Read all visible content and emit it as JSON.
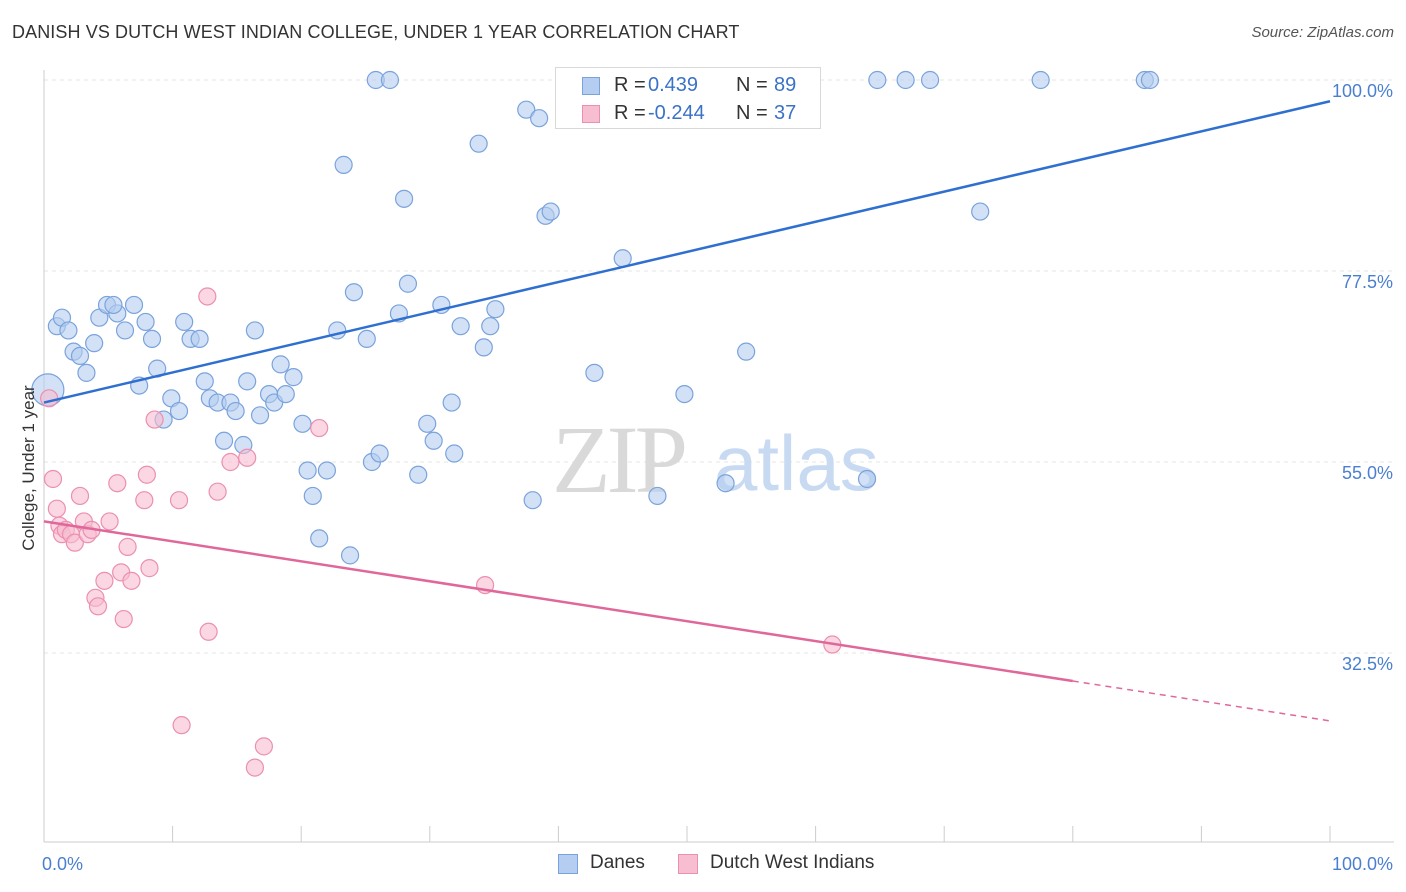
{
  "title": "DANISH VS DUTCH WEST INDIAN COLLEGE, UNDER 1 YEAR CORRELATION CHART",
  "source": "Source: ZipAtlas.com",
  "watermark": {
    "zip": "ZIP",
    "atlas": "atlas"
  },
  "legend_top": {
    "r_label": "R =",
    "n_label": "N =",
    "rows": [
      {
        "r": "0.439",
        "n": "89"
      },
      {
        "r": "-0.244",
        "n": "37"
      }
    ]
  },
  "legend_bottom": [
    "Danes",
    "Dutch West Indians"
  ],
  "colors": {
    "danes_fill": "#b4cdf0",
    "danes_stroke": "#7aa3dc",
    "danes_line": "#2f6fd0",
    "dwi_fill": "#f7bdd0",
    "dwi_stroke": "#ec8fb0",
    "dwi_line": "#e0679a",
    "tick_text": "#4a7fd0",
    "grid": "#e6e6e6"
  },
  "chart_data": {
    "type": "scatter",
    "title": "DANISH VS DUTCH WEST INDIAN COLLEGE, UNDER 1 YEAR CORRELATION CHART",
    "xlabel": "",
    "ylabel": "College, Under 1 year",
    "xlim": [
      0,
      100
    ],
    "ylim": [
      15,
      102
    ],
    "x_tick_labels": [
      "0.0%",
      "100.0%"
    ],
    "y_ticks": [
      {
        "value": 32.5,
        "label": "32.5%"
      },
      {
        "value": 55.0,
        "label": "55.0%"
      },
      {
        "value": 77.5,
        "label": "77.5%"
      },
      {
        "value": 100.0,
        "label": "100.0%"
      }
    ],
    "grid": true,
    "legend_position": "top-center",
    "series": [
      {
        "name": "Danes",
        "R": 0.439,
        "N": 89,
        "trend": {
          "x": [
            0,
            100
          ],
          "y": [
            62.0,
            97.5
          ],
          "dashed_from_x": null
        },
        "points": [
          [
            0.3,
            63.5
          ],
          [
            1.0,
            71.0
          ],
          [
            1.4,
            72.0
          ],
          [
            1.9,
            70.5
          ],
          [
            2.3,
            68.0
          ],
          [
            2.8,
            67.5
          ],
          [
            3.3,
            65.5
          ],
          [
            3.9,
            69.0
          ],
          [
            4.3,
            72.0
          ],
          [
            4.9,
            73.5
          ],
          [
            5.7,
            72.5
          ],
          [
            5.4,
            73.5
          ],
          [
            6.3,
            70.5
          ],
          [
            7.0,
            73.5
          ],
          [
            7.4,
            64.0
          ],
          [
            7.9,
            71.5
          ],
          [
            8.4,
            69.5
          ],
          [
            8.8,
            66.0
          ],
          [
            9.3,
            60.0
          ],
          [
            9.9,
            62.5
          ],
          [
            10.5,
            61.0
          ],
          [
            10.9,
            71.5
          ],
          [
            11.4,
            69.5
          ],
          [
            12.1,
            69.5
          ],
          [
            12.5,
            64.5
          ],
          [
            12.9,
            62.5
          ],
          [
            13.5,
            62.0
          ],
          [
            14.0,
            57.5
          ],
          [
            14.5,
            62.0
          ],
          [
            14.9,
            61.0
          ],
          [
            15.5,
            57.0
          ],
          [
            15.8,
            64.5
          ],
          [
            16.4,
            70.5
          ],
          [
            16.8,
            60.5
          ],
          [
            17.5,
            63.0
          ],
          [
            17.9,
            62.0
          ],
          [
            18.4,
            66.5
          ],
          [
            18.8,
            63.0
          ],
          [
            19.4,
            65.0
          ],
          [
            20.1,
            59.5
          ],
          [
            20.5,
            54.0
          ],
          [
            20.9,
            51.0
          ],
          [
            21.4,
            46.0
          ],
          [
            22.0,
            54.0
          ],
          [
            22.8,
            70.5
          ],
          [
            23.3,
            90.0
          ],
          [
            23.8,
            44.0
          ],
          [
            24.1,
            75.0
          ],
          [
            25.1,
            69.5
          ],
          [
            25.5,
            55.0
          ],
          [
            26.1,
            56.0
          ],
          [
            25.8,
            100.0
          ],
          [
            26.9,
            100.0
          ],
          [
            27.6,
            72.5
          ],
          [
            28.0,
            86.0
          ],
          [
            28.3,
            76.0
          ],
          [
            29.1,
            53.5
          ],
          [
            29.8,
            59.5
          ],
          [
            30.3,
            57.5
          ],
          [
            30.9,
            73.5
          ],
          [
            31.7,
            62.0
          ],
          [
            31.9,
            56.0
          ],
          [
            32.4,
            71.0
          ],
          [
            33.8,
            92.5
          ],
          [
            34.2,
            68.5
          ],
          [
            34.7,
            71.0
          ],
          [
            35.1,
            73.0
          ],
          [
            37.5,
            96.5
          ],
          [
            38.0,
            50.5
          ],
          [
            38.5,
            95.5
          ],
          [
            39.0,
            84.0
          ],
          [
            39.4,
            84.5
          ],
          [
            41.0,
            100.0
          ],
          [
            41.5,
            100.0
          ],
          [
            42.8,
            65.5
          ],
          [
            45.0,
            79.0
          ],
          [
            47.7,
            51.0
          ],
          [
            49.8,
            63.0
          ],
          [
            52.5,
            100.0
          ],
          [
            53.0,
            52.5
          ],
          [
            54.6,
            68.0
          ],
          [
            64.0,
            53.0
          ],
          [
            64.8,
            100.0
          ],
          [
            67.0,
            100.0
          ],
          [
            68.9,
            100.0
          ],
          [
            72.8,
            84.5
          ],
          [
            85.6,
            100.0
          ],
          [
            86.0,
            100.0
          ],
          [
            77.5,
            100.0
          ]
        ]
      },
      {
        "name": "Dutch West Indians",
        "R": -0.244,
        "N": 37,
        "trend": {
          "x": [
            0,
            100
          ],
          "y": [
            48.0,
            24.5
          ],
          "dashed_from_x": 80
        },
        "points": [
          [
            0.4,
            62.5
          ],
          [
            0.7,
            53.0
          ],
          [
            1.0,
            49.5
          ],
          [
            1.2,
            47.5
          ],
          [
            1.4,
            46.5
          ],
          [
            1.7,
            47.0
          ],
          [
            2.1,
            46.5
          ],
          [
            2.4,
            45.5
          ],
          [
            2.8,
            51.0
          ],
          [
            3.1,
            48.0
          ],
          [
            3.4,
            46.5
          ],
          [
            3.7,
            47.0
          ],
          [
            4.0,
            39.0
          ],
          [
            4.2,
            38.0
          ],
          [
            4.7,
            41.0
          ],
          [
            5.1,
            48.0
          ],
          [
            5.7,
            52.5
          ],
          [
            6.0,
            42.0
          ],
          [
            6.2,
            36.5
          ],
          [
            6.5,
            45.0
          ],
          [
            6.8,
            41.0
          ],
          [
            7.8,
            50.5
          ],
          [
            8.0,
            53.5
          ],
          [
            8.2,
            42.5
          ],
          [
            8.6,
            60.0
          ],
          [
            10.5,
            50.5
          ],
          [
            10.7,
            24.0
          ],
          [
            12.7,
            74.5
          ],
          [
            12.8,
            35.0
          ],
          [
            13.5,
            51.5
          ],
          [
            14.5,
            55.0
          ],
          [
            15.8,
            55.5
          ],
          [
            16.4,
            19.0
          ],
          [
            17.1,
            21.5
          ],
          [
            21.4,
            59.0
          ],
          [
            34.3,
            40.5
          ],
          [
            61.3,
            33.5
          ]
        ]
      }
    ]
  }
}
